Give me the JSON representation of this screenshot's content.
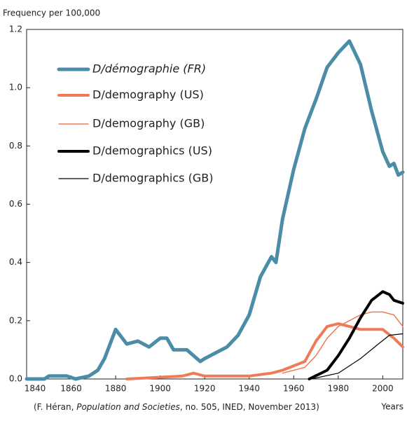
{
  "chart_data": {
    "type": "line",
    "y_label": "Frequency per 100,000",
    "x_label": "Years",
    "source": [
      "(F. Héran, ",
      "Population and Societies",
      ", no. 505, INED, November 2013)"
    ],
    "xlim": [
      1840,
      2009
    ],
    "ylim": [
      0,
      1.2
    ],
    "xticks": [
      1840,
      1860,
      1880,
      1900,
      1920,
      1940,
      1960,
      1980,
      2000
    ],
    "yticks": [
      {
        "value": 0,
        "label": "0.0"
      },
      {
        "value": 0.2,
        "label": "0.2"
      },
      {
        "value": 0.4,
        "label": "0.4"
      },
      {
        "value": 0.6,
        "label": "0.6"
      },
      {
        "value": 0.8,
        "label": "0.8"
      },
      {
        "value": 1.0,
        "label": "1.0"
      },
      {
        "value": 1.2,
        "label": "1.2"
      }
    ],
    "series": [
      {
        "name": "D/démographie (FR)",
        "color": "#4b8ca6",
        "width": 5,
        "italic": true,
        "x": [
          1840,
          1848,
          1850,
          1858,
          1862,
          1868,
          1872,
          1875,
          1880,
          1885,
          1890,
          1895,
          1900,
          1903,
          1906,
          1912,
          1918,
          1920,
          1925,
          1930,
          1935,
          1940,
          1945,
          1950,
          1952,
          1955,
          1960,
          1965,
          1968,
          1970,
          1975,
          1980,
          1985,
          1990,
          1995,
          2000,
          2003,
          2005,
          2007,
          2009
        ],
        "values": [
          0,
          0,
          0.01,
          0.01,
          0,
          0.01,
          0.03,
          0.07,
          0.17,
          0.12,
          0.13,
          0.11,
          0.14,
          0.14,
          0.1,
          0.1,
          0.06,
          0.07,
          0.09,
          0.11,
          0.15,
          0.22,
          0.35,
          0.42,
          0.4,
          0.55,
          0.72,
          0.86,
          0.92,
          0.96,
          1.07,
          1.12,
          1.16,
          1.08,
          0.92,
          0.78,
          0.73,
          0.74,
          0.7,
          0.71
        ]
      },
      {
        "name": "D/demography (US)",
        "color": "#ee7a56",
        "width": 4,
        "italic": false,
        "x": [
          1885,
          1910,
          1915,
          1920,
          1940,
          1950,
          1955,
          1965,
          1970,
          1975,
          1980,
          1985,
          1990,
          1995,
          2000,
          2005,
          2009
        ],
        "values": [
          0,
          0.01,
          0.02,
          0.01,
          0.01,
          0.02,
          0.03,
          0.06,
          0.13,
          0.18,
          0.19,
          0.18,
          0.17,
          0.17,
          0.17,
          0.14,
          0.11
        ]
      },
      {
        "name": "D/demography (GB)",
        "color": "#ee7a56",
        "width": 1.5,
        "italic": false,
        "x": [
          1955,
          1965,
          1970,
          1975,
          1980,
          1985,
          1990,
          1995,
          2000,
          2005,
          2009
        ],
        "values": [
          0.02,
          0.04,
          0.08,
          0.14,
          0.18,
          0.2,
          0.22,
          0.23,
          0.23,
          0.22,
          0.18
        ]
      },
      {
        "name": "D/demographics (US)",
        "color": "#000000",
        "width": 4,
        "italic": false,
        "x": [
          1967,
          1975,
          1980,
          1985,
          1990,
          1995,
          2000,
          2003,
          2005,
          2009
        ],
        "values": [
          0,
          0.03,
          0.08,
          0.14,
          0.21,
          0.27,
          0.3,
          0.29,
          0.27,
          0.26
        ]
      },
      {
        "name": "D/demographics (GB)",
        "color": "#000000",
        "width": 1.2,
        "italic": false,
        "x": [
          1968,
          1980,
          1990,
          1998,
          2003,
          2009
        ],
        "values": [
          0,
          0.02,
          0.07,
          0.12,
          0.15,
          0.155
        ]
      }
    ]
  }
}
